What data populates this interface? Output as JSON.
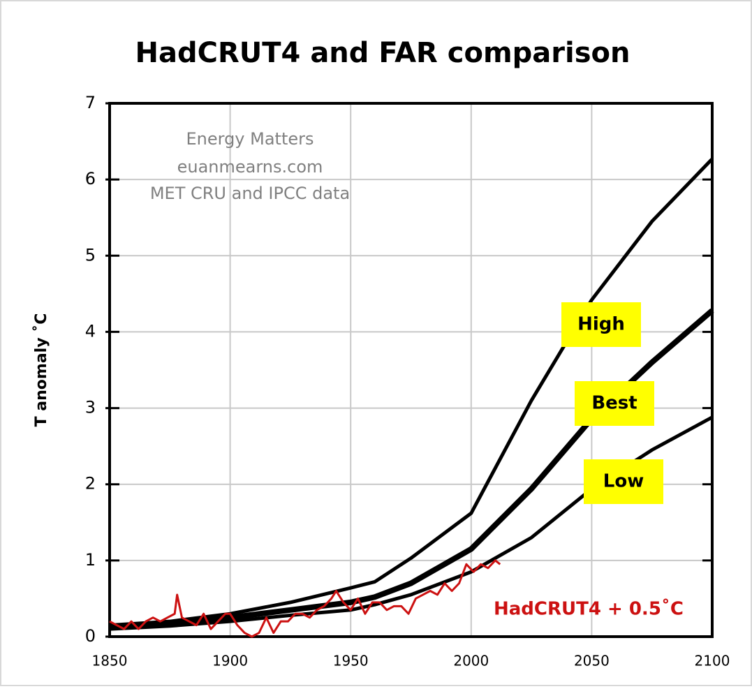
{
  "chart_data": {
    "type": "line",
    "title": "HadCRUT4 and FAR comparison",
    "ylabel": "T anomaly ˚C",
    "annotations": [
      "Energy Matters",
      "euanmearns.com",
      "MET CRU and IPCC data"
    ],
    "xlim": [
      1850,
      2100
    ],
    "xticks": [
      1850,
      1900,
      1950,
      2000,
      2050,
      2100
    ],
    "ylim": [
      0,
      7
    ],
    "yticks": [
      0,
      1,
      2,
      3,
      4,
      5,
      6,
      7
    ],
    "grid": true,
    "series": [
      {
        "name": "High",
        "color": "#000000",
        "label_bg": "#ffff00",
        "x": [
          1850,
          1875,
          1900,
          1925,
          1950,
          1960,
          1975,
          2000,
          2025,
          2050,
          2075,
          2100
        ],
        "values": [
          0.15,
          0.2,
          0.3,
          0.45,
          0.64,
          0.72,
          1.03,
          1.62,
          3.1,
          4.42,
          5.45,
          6.27
        ]
      },
      {
        "name": "Best",
        "color": "#000000",
        "label_bg": "#ffff00",
        "x": [
          1850,
          1875,
          1900,
          1925,
          1950,
          1960,
          1975,
          2000,
          2025,
          2050,
          2075,
          2100
        ],
        "values": [
          0.13,
          0.17,
          0.25,
          0.35,
          0.45,
          0.52,
          0.7,
          1.15,
          1.94,
          2.86,
          3.6,
          4.28
        ]
      },
      {
        "name": "Low",
        "color": "#000000",
        "label_bg": "#ffff00",
        "x": [
          1850,
          1875,
          1900,
          1925,
          1950,
          1960,
          1975,
          2000,
          2025,
          2050,
          2075,
          2100
        ],
        "values": [
          0.1,
          0.14,
          0.2,
          0.28,
          0.35,
          0.42,
          0.55,
          0.85,
          1.3,
          1.94,
          2.45,
          2.88
        ]
      },
      {
        "name": "HadCRUT4 + 0.5˚C",
        "color": "#cc1111",
        "x": [
          1850,
          1853,
          1856,
          1859,
          1862,
          1865,
          1868,
          1871,
          1874,
          1877,
          1878,
          1880,
          1883,
          1886,
          1889,
          1892,
          1895,
          1898,
          1900,
          1903,
          1906,
          1909,
          1912,
          1915,
          1918,
          1921,
          1924,
          1927,
          1930,
          1933,
          1936,
          1939,
          1942,
          1944,
          1947,
          1950,
          1953,
          1956,
          1959,
          1962,
          1965,
          1968,
          1971,
          1974,
          1977,
          1980,
          1983,
          1986,
          1989,
          1992,
          1995,
          1998,
          2001,
          2004,
          2007,
          2010,
          2012
        ],
        "values": [
          0.2,
          0.15,
          0.1,
          0.2,
          0.1,
          0.2,
          0.25,
          0.2,
          0.25,
          0.3,
          0.55,
          0.25,
          0.2,
          0.15,
          0.3,
          0.1,
          0.2,
          0.3,
          0.3,
          0.15,
          0.05,
          0.0,
          0.05,
          0.25,
          0.05,
          0.2,
          0.2,
          0.3,
          0.3,
          0.25,
          0.35,
          0.4,
          0.5,
          0.6,
          0.45,
          0.35,
          0.5,
          0.3,
          0.45,
          0.45,
          0.35,
          0.4,
          0.4,
          0.3,
          0.5,
          0.55,
          0.6,
          0.55,
          0.7,
          0.6,
          0.7,
          0.95,
          0.85,
          0.95,
          0.9,
          1.0,
          0.95
        ]
      }
    ]
  }
}
